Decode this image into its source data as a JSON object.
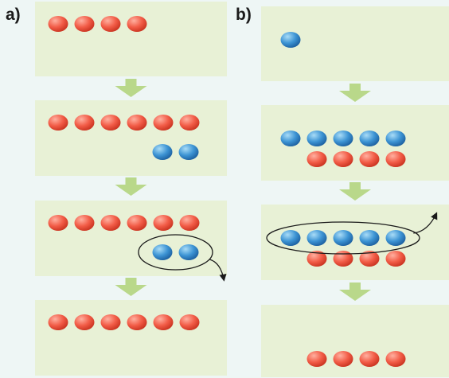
{
  "labels": {
    "a": "a)",
    "b": "b)"
  },
  "colors": {
    "background": "#eef6f5",
    "box": "#e8f1d6",
    "arrow": "#b9d88a",
    "red_light": "#ffb0a0",
    "red": "#f25c47",
    "red_dark": "#c8321f",
    "blue_light": "#a9dcf7",
    "blue": "#3d94d4",
    "blue_dark": "#1b5e9e",
    "outline": "#1a1a1a"
  },
  "icons": {
    "down_arrow": "down-arrow-icon",
    "removal_arrow": "curved-arrow-icon",
    "selection": "ellipse-outline"
  },
  "panel_a": {
    "stages": [
      {
        "top_row": {
          "red": 4,
          "blue": 0
        },
        "bottom_row": {
          "red": 0,
          "blue": 0
        }
      },
      {
        "top_row": {
          "red": 6,
          "blue": 0
        },
        "bottom_row": {
          "red": 0,
          "blue": 2
        }
      },
      {
        "top_row": {
          "red": 6,
          "blue": 0
        },
        "bottom_row": {
          "red": 0,
          "blue": 2
        },
        "selected": "bottom_row"
      },
      {
        "top_row": {
          "red": 6,
          "blue": 0
        },
        "bottom_row": {
          "red": 0,
          "blue": 0
        }
      }
    ]
  },
  "panel_b": {
    "stages": [
      {
        "top_row": {
          "red": 0,
          "blue": 1
        },
        "bottom_row": {
          "red": 0,
          "blue": 0
        }
      },
      {
        "top_row": {
          "red": 0,
          "blue": 5
        },
        "bottom_row": {
          "red": 4,
          "blue": 0
        }
      },
      {
        "top_row": {
          "red": 0,
          "blue": 5
        },
        "bottom_row": {
          "red": 4,
          "blue": 0
        },
        "selected": "top_row"
      },
      {
        "top_row": {
          "red": 0,
          "blue": 0
        },
        "bottom_row": {
          "red": 4,
          "blue": 0
        }
      }
    ]
  }
}
